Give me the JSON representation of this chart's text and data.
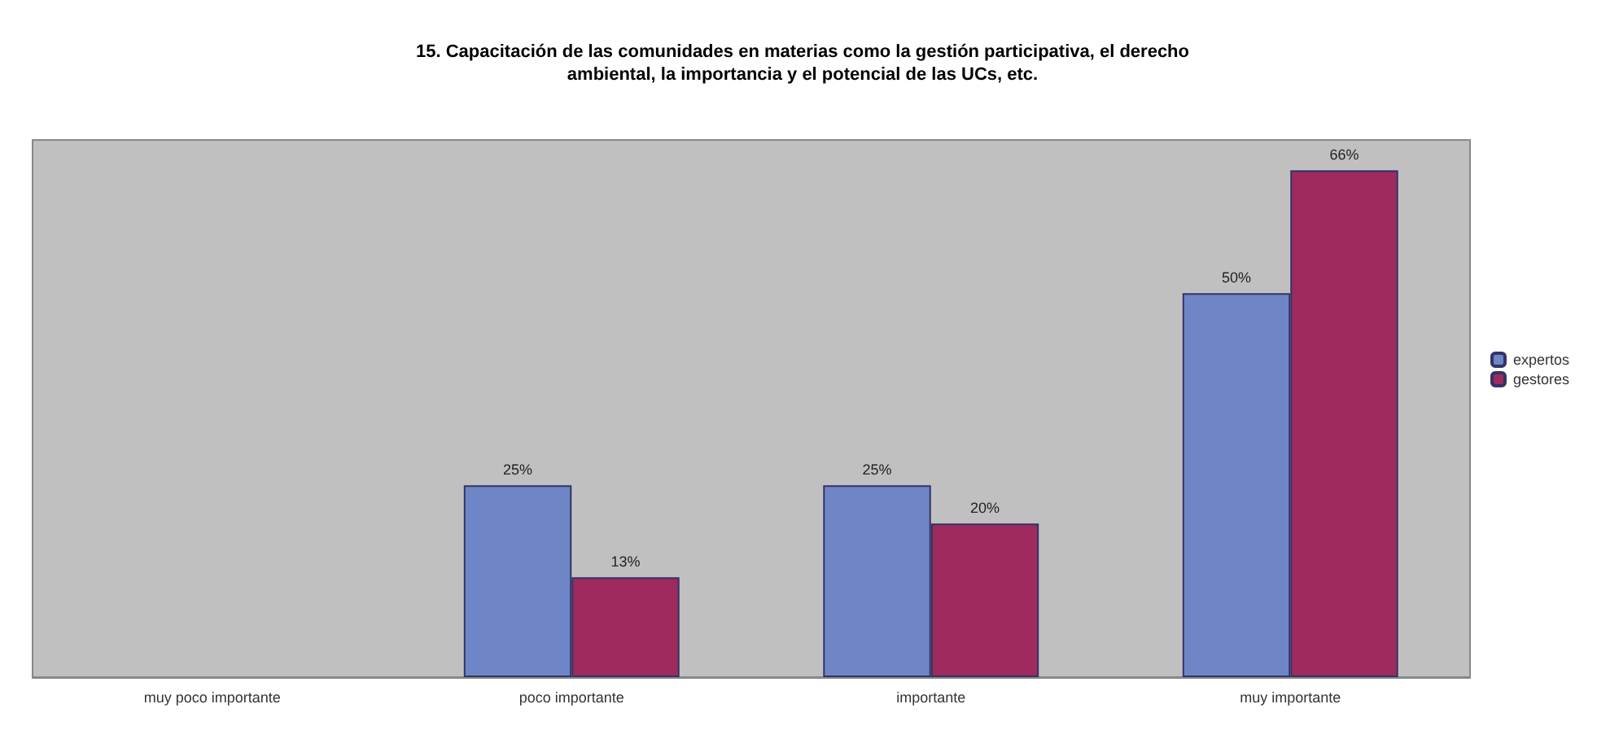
{
  "chart_data": {
    "type": "bar",
    "title": "15. Capacitación de las comunidades en materias como la gestión participativa, el derecho\nambiental, la importancia y el potencial de las UCs, etc.",
    "categories": [
      "muy poco importante",
      "poco importante",
      "importante",
      "muy importante"
    ],
    "series": [
      {
        "name": "expertos",
        "color": "#6f86c6",
        "values": [
          0,
          25,
          25,
          50
        ],
        "value_labels": [
          null,
          "25%",
          "25%",
          "50%"
        ]
      },
      {
        "name": "gestores",
        "color": "#9e2a5e",
        "values": [
          0,
          13,
          20,
          66
        ],
        "value_labels": [
          null,
          "13%",
          "20%",
          "66%"
        ]
      }
    ],
    "legend": "right",
    "grid": false
  }
}
